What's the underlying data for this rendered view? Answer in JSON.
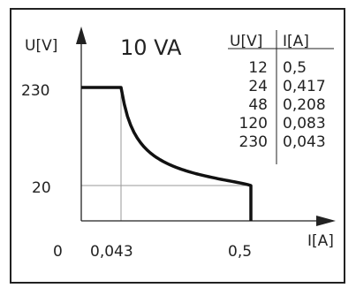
{
  "chart_data": {
    "type": "line",
    "title": "10 VA",
    "xlabel": "I[A]",
    "ylabel": "U[V]",
    "origin_label": "0",
    "x_ticks": [
      "0,043",
      "0,5"
    ],
    "y_ticks": [
      "230",
      "20"
    ],
    "x_tick_values": [
      0.043,
      0.5
    ],
    "y_tick_values": [
      230,
      20
    ],
    "xlim": [
      0,
      0.6
    ],
    "ylim": [
      0,
      250
    ],
    "grid": false,
    "reference_lines": true,
    "series": [
      {
        "x": [
          0.0,
          0.043,
          0.05,
          0.06,
          0.075,
          0.09,
          0.11,
          0.13,
          0.16,
          0.2,
          0.25,
          0.3,
          0.35,
          0.4,
          0.45,
          0.5,
          0.5
        ],
        "y": [
          230,
          230,
          200,
          166.7,
          133.3,
          111.1,
          90.9,
          76.9,
          62.5,
          50,
          40,
          33.3,
          28.6,
          25,
          22.2,
          20,
          0
        ]
      }
    ],
    "table": {
      "headers": [
        "U[V]",
        "I[A]"
      ],
      "rows": [
        [
          "12",
          "0,5"
        ],
        [
          "24",
          "0,417"
        ],
        [
          "48",
          "0,208"
        ],
        [
          "120",
          "0,083"
        ],
        [
          "230",
          "0,043"
        ]
      ]
    }
  }
}
